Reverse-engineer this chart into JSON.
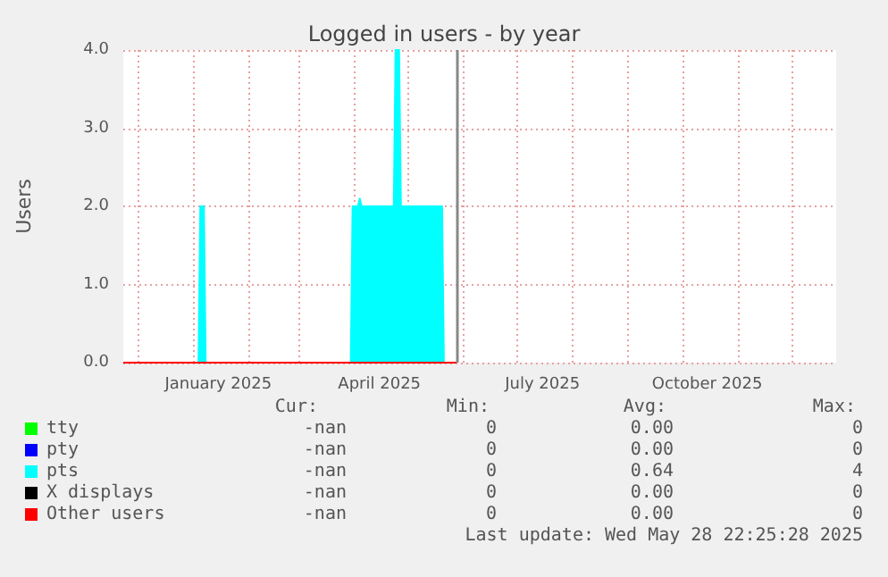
{
  "chart_data": {
    "type": "area",
    "title": "Logged in users - by year",
    "ylabel": "Users",
    "x": [
      "2024-11-23",
      "2025-01-04",
      "2025-01-05",
      "2025-01-07",
      "2025-01-08",
      "2025-03-30",
      "2025-03-31",
      "2025-04-03",
      "2025-04-04",
      "2025-04-05",
      "2025-04-23",
      "2025-04-24",
      "2025-04-26",
      "2025-04-27",
      "2025-05-20",
      "2025-05-21",
      "2025-05-28"
    ],
    "series": [
      {
        "name": "tty",
        "type": "line",
        "color": "#00ff00",
        "values": [
          null,
          null,
          null,
          null,
          null,
          null,
          null,
          null,
          null,
          null,
          null,
          null,
          null,
          null,
          null,
          null,
          null
        ]
      },
      {
        "name": "pty",
        "type": "line",
        "color": "#0000ff",
        "values": [
          null,
          null,
          null,
          null,
          null,
          null,
          null,
          null,
          null,
          null,
          null,
          null,
          null,
          null,
          null,
          null,
          null
        ]
      },
      {
        "name": "pts",
        "color": "#00ffff",
        "values": [
          0,
          0,
          2,
          2,
          0,
          0,
          2,
          2,
          2.1,
          2,
          2,
          4,
          4,
          2,
          2,
          0,
          0
        ]
      },
      {
        "name": "X displays",
        "type": "line",
        "color": "#000000",
        "values": [
          null,
          null,
          null,
          null,
          null,
          null,
          null,
          null,
          null,
          null,
          null,
          null,
          null,
          null,
          null,
          null,
          null
        ]
      },
      {
        "name": "Other users",
        "type": "line",
        "color": "#ff0000",
        "values": [
          0,
          0,
          0,
          0,
          0,
          0,
          0,
          0,
          0,
          0,
          0,
          0,
          0,
          0,
          0,
          0,
          0
        ]
      }
    ],
    "xlim": [
      "2024-11-23",
      "2025-12-26"
    ],
    "xticks": [
      {
        "value": "2024-12-01",
        "label": null
      },
      {
        "value": "2025-01-01",
        "label": null
      },
      {
        "value": "2025-01-15",
        "label": "January 2025"
      },
      {
        "value": "2025-02-01",
        "label": null
      },
      {
        "value": "2025-03-01",
        "label": null
      },
      {
        "value": "2025-04-01",
        "label": null
      },
      {
        "value": "2025-04-15",
        "label": "April 2025"
      },
      {
        "value": "2025-05-01",
        "label": null
      },
      {
        "value": "2025-06-01",
        "label": null
      },
      {
        "value": "2025-07-01",
        "label": null
      },
      {
        "value": "2025-07-15",
        "label": "July 2025"
      },
      {
        "value": "2025-08-01",
        "label": null
      },
      {
        "value": "2025-09-01",
        "label": null
      },
      {
        "value": "2025-10-01",
        "label": null
      },
      {
        "value": "2025-10-15",
        "label": "October 2025"
      },
      {
        "value": "2025-11-01",
        "label": null
      },
      {
        "value": "2025-12-01",
        "label": null
      }
    ],
    "ylim": [
      0,
      4
    ],
    "yticks": [
      {
        "value": 0,
        "label": "0.0"
      },
      {
        "value": 1,
        "label": "1.0"
      },
      {
        "value": 2,
        "label": "2.0"
      },
      {
        "value": 3,
        "label": "3.0"
      },
      {
        "value": 4,
        "label": "4.0"
      }
    ],
    "ref_lines": [
      {
        "axis": "x",
        "value": "2025-05-28",
        "label": null,
        "color": "#888888"
      }
    ],
    "grid": true,
    "legend": "bottom left",
    "marker": "none",
    "annotations": [
      "Cur:",
      "Min:",
      "Avg:",
      "Max:",
      "-nan",
      "0",
      "0.00",
      "0",
      "-nan",
      "0",
      "0.00",
      "0",
      "-nan",
      "0",
      "0.64",
      "4",
      "-nan",
      "0",
      "0.00",
      "0",
      "-nan",
      "0",
      "0.00",
      "0",
      "Last update: Wed May 28 22:25:28 2025"
    ]
  }
}
